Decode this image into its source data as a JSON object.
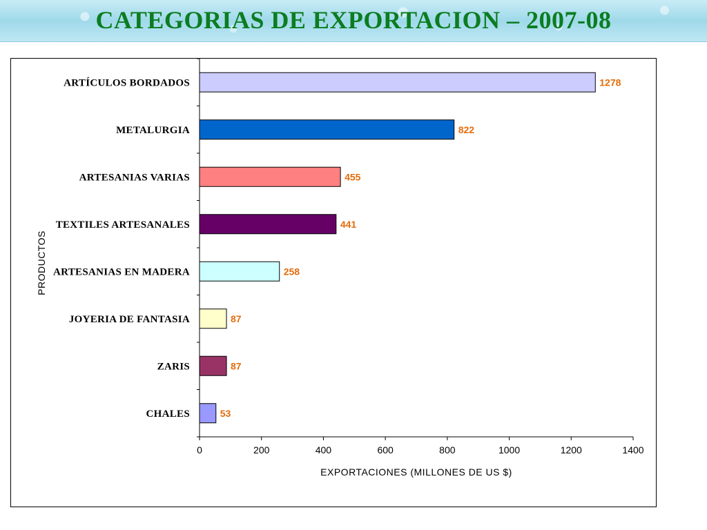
{
  "page": {
    "title": "CATEGORIAS DE EXPORTACION – 2007-08"
  },
  "chart_data": {
    "type": "bar",
    "orientation": "horizontal",
    "title": "CATEGORIAS DE EXPORTACION – 2007-08",
    "xlabel": "EXPORTACIONES (MILLONES DE US $)",
    "ylabel": "PRODUCTOS",
    "xlim": [
      0,
      1400
    ],
    "xticks": [
      0,
      200,
      400,
      600,
      800,
      1000,
      1200,
      1400
    ],
    "grid": false,
    "legend": "none",
    "value_label_color": "#e36c0a",
    "categories": [
      "ARTÍCULOS BORDADOS",
      "METALURGIA",
      "ARTESANIAS VARIAS",
      "TEXTILES ARTESANALES",
      "ARTESANIAS EN MADERA",
      "JOYERIA DE FANTASIA",
      "ZARIS",
      "CHALES"
    ],
    "values": [
      1278,
      822,
      455,
      441,
      258,
      87,
      87,
      53
    ],
    "colors": [
      "#ccccff",
      "#0066cc",
      "#ff8080",
      "#660066",
      "#ccffff",
      "#ffffcc",
      "#993366",
      "#9999ff"
    ]
  }
}
